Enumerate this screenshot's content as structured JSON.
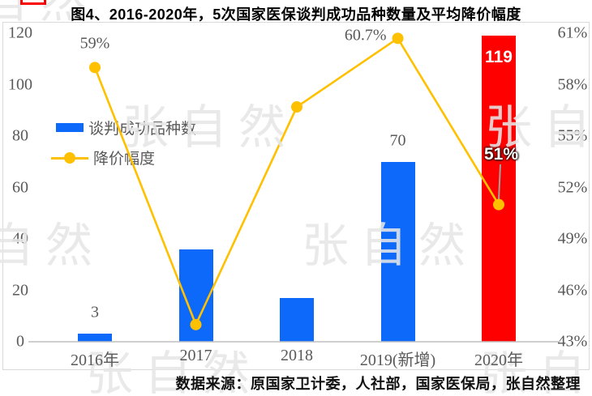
{
  "title": "图4、2016-2020年，5次国家医保谈判成功品种数量及平均降价幅度",
  "source_note": "数据来源：原国家卫计委，人社部，国家医保局，张自然整理",
  "watermark_text": "张自然",
  "colors": {
    "bar_blue": "#0d69fa",
    "bar_red": "#fe0000",
    "line_gold": "#ffc000",
    "axis_text": "#595959",
    "axis_line": "#bfbfbf",
    "chart_border": "#d9d9d9",
    "leader_line": "#a0a0a0"
  },
  "chart_data": {
    "type": "bar",
    "subtype": "combo-bar-line-dual-axis",
    "categories": [
      "2016年",
      "2017",
      "2018",
      "2019(新增)",
      "2020年"
    ],
    "series": [
      {
        "name": "谈判成功品种数",
        "type": "bar",
        "axis": "left",
        "values": [
          3,
          36,
          17,
          70,
          119
        ],
        "data_labels": [
          "3",
          null,
          null,
          "70",
          "119"
        ],
        "bar_colors": [
          "#0d69fa",
          "#0d69fa",
          "#0d69fa",
          "#0d69fa",
          "#fe0000"
        ]
      },
      {
        "name": "降价幅度",
        "type": "line",
        "axis": "right",
        "values_percent": [
          59,
          44,
          56.7,
          60.7,
          51
        ],
        "data_labels": [
          "59%",
          null,
          null,
          "60.7%",
          "51%"
        ],
        "color": "#ffc000"
      }
    ],
    "left_axis": {
      "min": 0,
      "max": 120,
      "step": 20,
      "tick_labels": [
        "0",
        "20",
        "40",
        "60",
        "80",
        "100",
        "120"
      ]
    },
    "right_axis": {
      "min": 43,
      "max": 61,
      "step": 3,
      "format": "percent",
      "tick_labels": [
        "43%",
        "46%",
        "49%",
        "52%",
        "55%",
        "58%",
        "61%"
      ]
    },
    "legend_position": "inside-left",
    "grid": false
  }
}
